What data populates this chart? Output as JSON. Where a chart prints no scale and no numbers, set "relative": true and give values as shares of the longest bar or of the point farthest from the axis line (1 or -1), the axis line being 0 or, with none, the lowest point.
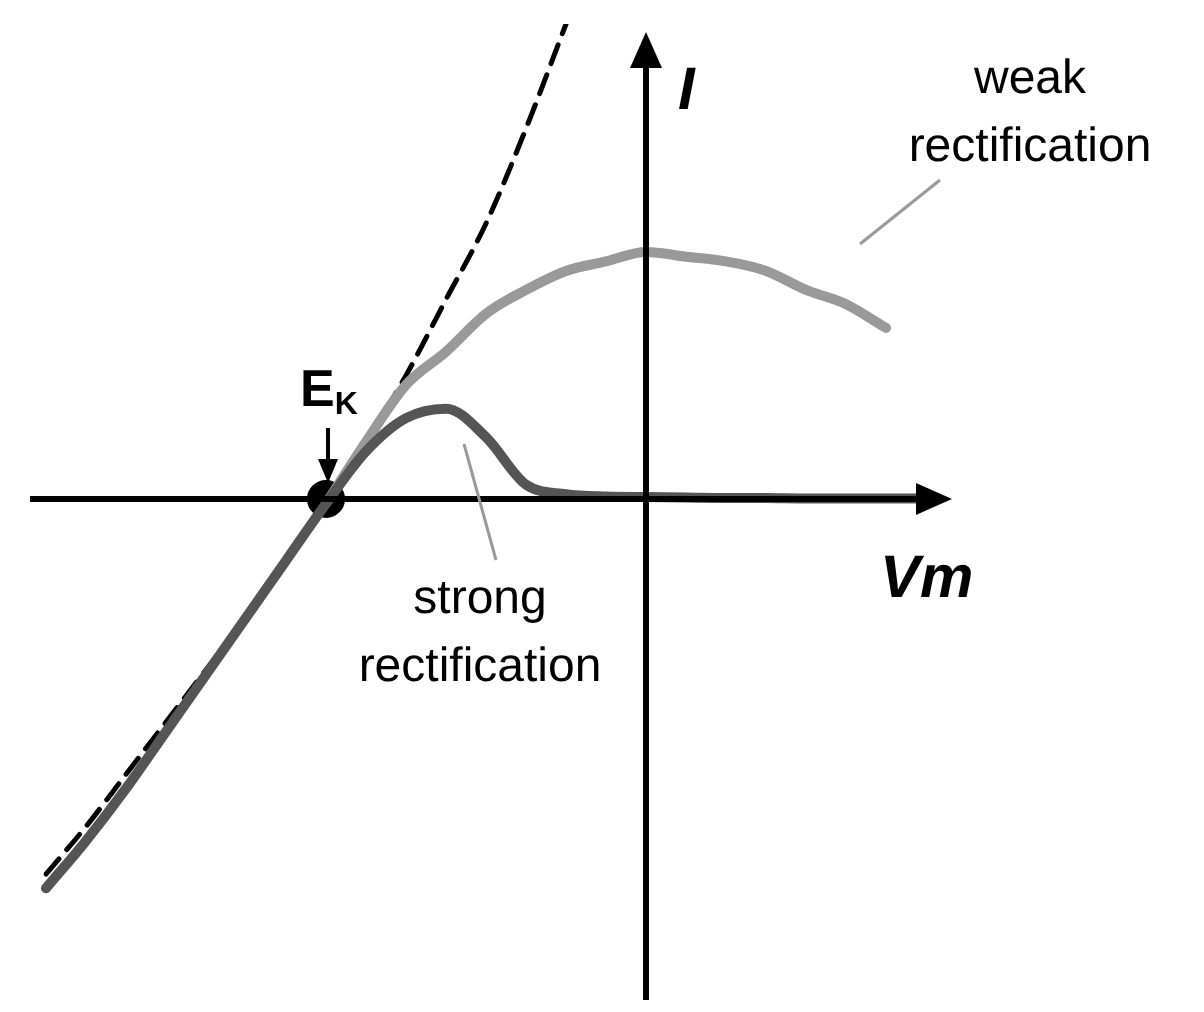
{
  "chart_data": {
    "type": "line",
    "relative": true,
    "xlabel": "Vm",
    "ylabel": "I",
    "legend": false,
    "categories": [
      null,
      null,
      null,
      null,
      null,
      null,
      null,
      null,
      null,
      null,
      null,
      null,
      null,
      null,
      null,
      null,
      null,
      null,
      null,
      null,
      null,
      null,
      null
    ],
    "series": [
      {
        "color": "#555555",
        "line_style": "solid",
        "marker": "none",
        "values": [
          -0.82,
          -0.72,
          -0.61,
          -0.49,
          -0.37,
          -0.25,
          -0.13,
          -0.01,
          0.1,
          0.17,
          0.19,
          0.13,
          0.03,
          0.01,
          0.005,
          0.004,
          0.003,
          0.002,
          0.002,
          0.001,
          0.001,
          0.001,
          0.001
        ]
      },
      {
        "color": "#999999",
        "line_style": "solid",
        "marker": "none",
        "values": [
          null,
          null,
          null,
          null,
          null,
          null,
          null,
          -0.01,
          0.12,
          0.24,
          0.31,
          0.39,
          0.44,
          0.48,
          0.5,
          0.52,
          0.51,
          0.5,
          0.48,
          0.44,
          0.41,
          0.36,
          null
        ]
      },
      {
        "color": "#000000",
        "line_style": "dashed",
        "marker": "none",
        "values": [
          -0.79,
          -0.69,
          -0.58,
          -0.47,
          -0.36,
          -0.25,
          -0.13,
          -0.01,
          0.12,
          0.26,
          0.42,
          0.58,
          0.78,
          1,
          null,
          null,
          null,
          null,
          null,
          null,
          null,
          null,
          null
        ]
      },
      {
        "color": "#000000",
        "marker": "circle",
        "line_style": "solid",
        "values": [
          null,
          null,
          null,
          null,
          null,
          null,
          null,
          0,
          null,
          null,
          null,
          null,
          null,
          null,
          null,
          null,
          null,
          null,
          null,
          null,
          null,
          null,
          null
        ]
      }
    ],
    "annotations": [
      "weak\nrectification",
      "strong\nrectification",
      "E$_{K}$"
    ]
  }
}
